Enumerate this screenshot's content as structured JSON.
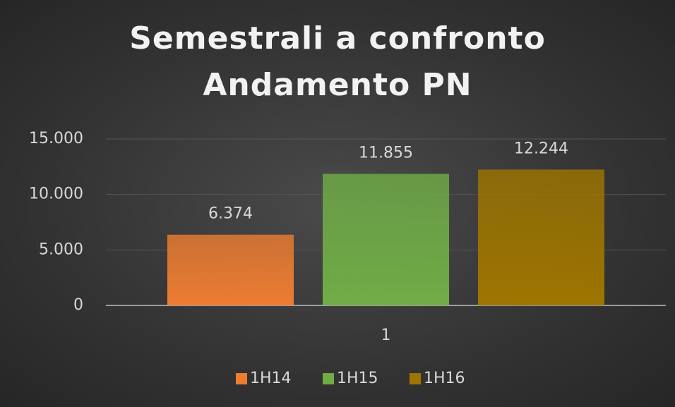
{
  "chart_data": {
    "type": "bar",
    "title": "Semestrali a confronto\nAndamento PN",
    "categories": [
      "1"
    ],
    "series": [
      {
        "name": "1H14",
        "color": "#ed7d31",
        "values": [
          6374
        ],
        "value_labels": [
          "6.374"
        ]
      },
      {
        "name": "1H15",
        "color": "#70ad47",
        "values": [
          11855
        ],
        "value_labels": [
          "11.855"
        ]
      },
      {
        "name": "1H16",
        "color": "#9e7500",
        "values": [
          12244
        ],
        "value_labels": [
          "12.244"
        ]
      }
    ],
    "ylim": [
      0,
      15000
    ],
    "yticks": [
      0,
      {
        "value": 5000,
        "label": "5.000"
      },
      {
        "value": 10000,
        "label": "10.000"
      },
      {
        "value": 15000,
        "label": "15.000"
      }
    ],
    "grid": true,
    "legend": "bottom"
  }
}
